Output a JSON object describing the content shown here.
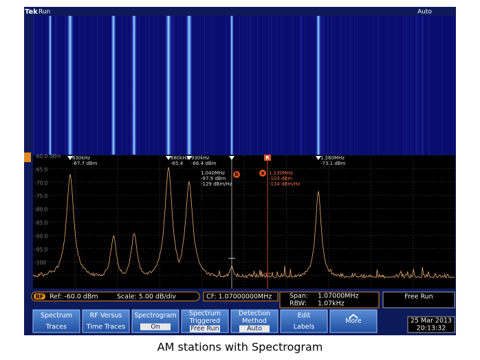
{
  "header": {
    "brand": "Tek",
    "state": "Run",
    "mode": "Auto"
  },
  "y_labels": [
    "-60.0 dBm",
    "-65.0",
    "-70.0",
    "-75.0",
    "-80.0",
    "-85.0",
    "-90.0",
    "-95.0",
    "-100"
  ],
  "markers": [
    {
      "freq": "630kHz",
      "level": "-67.7 dBm"
    },
    {
      "freq": "880kHz",
      "level": "-65.4"
    },
    {
      "freq": "930kHz",
      "level": "-66.4 dBm"
    },
    {
      "freq": "1.260MHz",
      "level": "-73.1 dBm"
    }
  ],
  "marker_b": {
    "letter": "b",
    "freq": "1.040MHz",
    "level": "-97.9 dBm",
    "density": "-129 dBm/Hz"
  },
  "marker_a": {
    "letter": "a",
    "ref": "R",
    "freq": "1.130MHz",
    "level": "-103 dBm",
    "density": "-134 dBm/Hz"
  },
  "status": {
    "badge": "RF",
    "ref": "Ref: -60.0 dBm",
    "scale": "Scale: 5.00 dB/div",
    "cf": "CF: 1.07000000MHz",
    "span_label": "Span:",
    "span": "1.07000MHz",
    "rbw_label": "RBW:",
    "rbw": "1.07kHz",
    "trigger": "Free Run"
  },
  "buttons": [
    {
      "line1": "Spectrum",
      "line2": "Traces"
    },
    {
      "line1": "RF Versus",
      "line2": "Time Traces"
    },
    {
      "line1": "Spectrogram",
      "line2": "On"
    },
    {
      "line1": "Spectrum",
      "line2": "Triggered",
      "line3": "Free Run"
    },
    {
      "line1": "Detection",
      "line2": "Method",
      "line3": "Auto"
    },
    {
      "line1": "Edit",
      "line2": "Labels"
    },
    {
      "line1": "More"
    }
  ],
  "date": "25 Mar 2013",
  "time": "20:13:32",
  "caption": "AM stations with Spectrogram"
}
